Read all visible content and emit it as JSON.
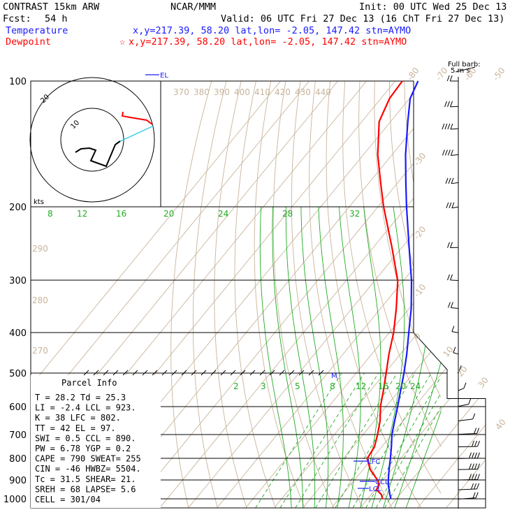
{
  "header": {
    "model": "CONTRAST 15km ARW",
    "org": "NCAR/MMM",
    "init": "Init: 00 UTC Wed 25 Dec 13",
    "fcst_label": "Fcst:",
    "fcst_value": "54 h",
    "valid": "Valid: 06 UTC Fri 27 Dec 13 (16 ChT Fri 27 Dec 13)",
    "temp_label": "Temperature",
    "temp_loc": "x,y=217.39, 58.20   lat,lon= -2.05, 147.42  stn=AYMO",
    "dew_label": "Dewpoint",
    "dew_loc": "x,y=217.39, 58.20   lat,lon= -2.05, 147.42  stn=AYMO"
  },
  "colors": {
    "temperature": "#1a1aff",
    "dewpoint": "#ff0000",
    "dry_adiabat": "#c8b49a",
    "moist_adiabat": "#22aa22",
    "mixing_ratio": "#22aa22",
    "hodograph_shear": "#33ccee"
  },
  "parcel_info": {
    "title": "Parcel Info",
    "rows": [
      "T  =    28.2  Td =  25.3",
      "LI =    -2.4  LCL =  923.",
      "K  =     38  LFC =  802.",
      "TT =     42  EL  =   97.",
      "SWI =    0.5  CCL =  890.",
      "PW =   6.78  YGP =   0.2",
      "CAPE =   790  SWEAT=  255",
      "CIN =    -46  HWBZ= 5504.",
      "Tc =   31.5  SHEAR=  21.",
      "SREH =    68  LAPSE=  5.6",
      "CELL = 301/04"
    ]
  },
  "barb_label": "Full barb:",
  "barb_unit": "5 m s",
  "kts_label": "kts",
  "hodo_ring_labels": [
    "20",
    "10"
  ],
  "level_markers": {
    "el": "EL",
    "lfc": "LFC",
    "ccl": "CCL",
    "lcl": "LCL",
    "m": "M"
  },
  "chart_data": {
    "type": "line",
    "title": "",
    "xlabel": "",
    "ylabel": "",
    "y_scale": "log-pressure",
    "pressure_ticks": [
      100,
      200,
      300,
      400,
      500,
      600,
      700,
      800,
      900,
      1000
    ],
    "isotherm_labels": [
      -80,
      -70,
      -60,
      -50,
      -40,
      -30,
      -20,
      -10,
      0,
      10,
      20,
      30,
      40
    ],
    "dry_adiabat_labels": [
      280,
      290,
      370,
      380,
      390,
      400,
      410,
      420,
      430,
      440
    ],
    "moist_adiabat_labels": [
      8,
      12,
      16,
      20,
      24,
      28,
      32
    ],
    "mixing_ratio_labels": [
      2,
      3,
      5,
      8,
      12,
      16,
      20,
      24
    ],
    "series": [
      {
        "name": "Temperature",
        "points": [
          [
            1000,
            28.2
          ],
          [
            975,
            26.5
          ],
          [
            950,
            24.9
          ],
          [
            925,
            23.2
          ],
          [
            900,
            21.8
          ],
          [
            850,
            19.1
          ],
          [
            800,
            16.4
          ],
          [
            750,
            13.4
          ],
          [
            700,
            10.0
          ],
          [
            650,
            7.1
          ],
          [
            600,
            4.0
          ],
          [
            550,
            0.5
          ],
          [
            500,
            -3.3
          ],
          [
            450,
            -7.8
          ],
          [
            400,
            -13.2
          ],
          [
            350,
            -19.3
          ],
          [
            300,
            -27.2
          ],
          [
            250,
            -37.5
          ],
          [
            200,
            -50.0
          ],
          [
            175,
            -57.2
          ],
          [
            150,
            -65.3
          ],
          [
            125,
            -74.0
          ],
          [
            110,
            -79.8
          ],
          [
            100,
            -82.0
          ]
        ]
      },
      {
        "name": "Dewpoint",
        "points": [
          [
            1000,
            25.3
          ],
          [
            975,
            23.5
          ],
          [
            950,
            20.5
          ],
          [
            925,
            20.0
          ],
          [
            900,
            18.0
          ],
          [
            850,
            12.5
          ],
          [
            800,
            8.3
          ],
          [
            750,
            7.5
          ],
          [
            700,
            5.0
          ],
          [
            650,
            2.0
          ],
          [
            600,
            -2.0
          ],
          [
            550,
            -5.5
          ],
          [
            500,
            -9.5
          ],
          [
            450,
            -14.0
          ],
          [
            400,
            -18.5
          ],
          [
            350,
            -24.5
          ],
          [
            300,
            -32.0
          ],
          [
            250,
            -43.5
          ],
          [
            200,
            -58.0
          ],
          [
            175,
            -66.0
          ],
          [
            150,
            -75.0
          ],
          [
            125,
            -84.0
          ],
          [
            110,
            -87.0
          ],
          [
            100,
            -87.5
          ]
        ]
      }
    ],
    "hodograph": [
      [
        0,
        0
      ],
      [
        3,
        0.5
      ],
      [
        6,
        -0.5
      ],
      [
        8,
        -2
      ],
      [
        10,
        -2
      ],
      [
        12,
        2
      ],
      [
        14,
        6
      ],
      [
        13,
        9
      ],
      [
        11,
        11
      ]
    ],
    "winds": [
      {
        "p": 100,
        "dir": 270,
        "spd": 10
      },
      {
        "p": 115,
        "dir": 280,
        "spd": 15
      },
      {
        "p": 130,
        "dir": 285,
        "spd": 20
      },
      {
        "p": 150,
        "dir": 290,
        "spd": 20
      },
      {
        "p": 175,
        "dir": 295,
        "spd": 15
      },
      {
        "p": 200,
        "dir": 300,
        "spd": 15
      },
      {
        "p": 250,
        "dir": 280,
        "spd": 10
      },
      {
        "p": 300,
        "dir": 260,
        "spd": 10
      },
      {
        "p": 350,
        "dir": 250,
        "spd": 10
      },
      {
        "p": 400,
        "dir": 240,
        "spd": 5
      },
      {
        "p": 450,
        "dir": 230,
        "spd": 5
      },
      {
        "p": 500,
        "dir": 200,
        "spd": 5
      },
      {
        "p": 550,
        "dir": 180,
        "spd": 5
      },
      {
        "p": 600,
        "dir": 160,
        "spd": 5
      },
      {
        "p": 650,
        "dir": 140,
        "spd": 5
      },
      {
        "p": 700,
        "dir": 110,
        "spd": 10
      },
      {
        "p": 750,
        "dir": 100,
        "spd": 15
      },
      {
        "p": 800,
        "dir": 100,
        "spd": 20
      },
      {
        "p": 850,
        "dir": 100,
        "spd": 20
      },
      {
        "p": 900,
        "dir": 100,
        "spd": 20
      },
      {
        "p": 950,
        "dir": 110,
        "spd": 15
      },
      {
        "p": 1000,
        "dir": 120,
        "spd": 10
      }
    ]
  }
}
